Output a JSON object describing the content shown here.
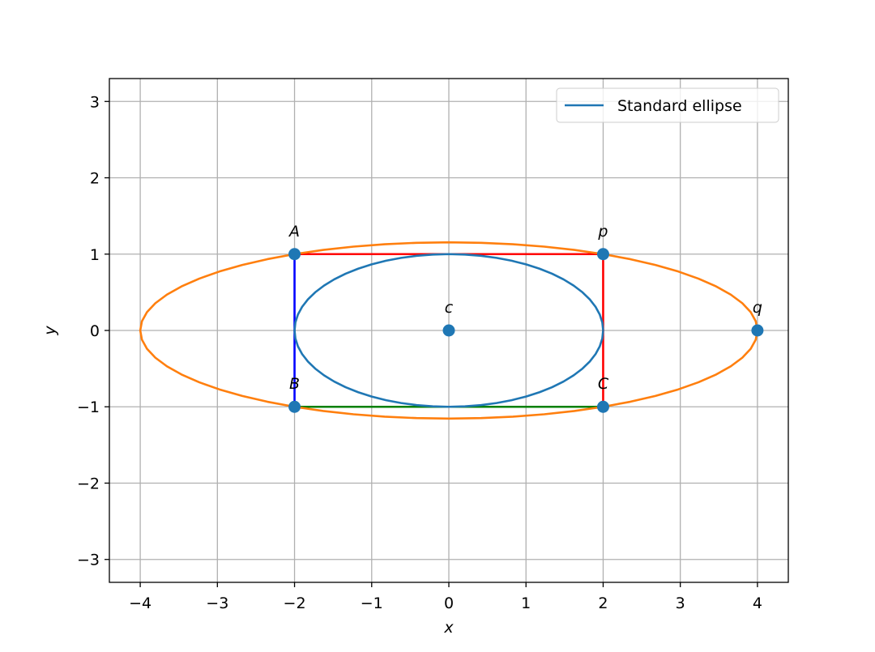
{
  "chart_data": {
    "type": "line",
    "title": "",
    "xlabel": "x",
    "ylabel": "y",
    "xlim": [
      -4.4,
      4.4
    ],
    "ylim": [
      -3.3,
      3.3
    ],
    "xticks": [
      -4,
      -3,
      -2,
      -1,
      0,
      1,
      2,
      3,
      4
    ],
    "yticks": [
      -3,
      -2,
      -1,
      0,
      1,
      2,
      3
    ],
    "xtick_labels": [
      "−4",
      "−3",
      "−2",
      "−1",
      "0",
      "1",
      "2",
      "3",
      "4"
    ],
    "ytick_labels": [
      "−3",
      "−2",
      "−1",
      "0",
      "1",
      "2",
      "3"
    ],
    "grid": true,
    "legend": {
      "position": "top-right",
      "entries": [
        {
          "label": "Standard ellipse",
          "color": "#1f77b4"
        }
      ]
    },
    "ellipses": [
      {
        "name": "standard-ellipse",
        "center": [
          0,
          0
        ],
        "a": 2,
        "b": 1,
        "color": "#1f77b4",
        "legend": "Standard ellipse"
      },
      {
        "name": "outer-ellipse",
        "center": [
          0,
          0
        ],
        "a": 4,
        "b": 1.1547,
        "color": "#ff7f0e"
      }
    ],
    "segments": [
      {
        "name": "segment-A-p",
        "from": [
          -2,
          1
        ],
        "to": [
          2,
          1
        ],
        "color": "#ff0000"
      },
      {
        "name": "segment-p-C",
        "from": [
          2,
          1
        ],
        "to": [
          2,
          -1
        ],
        "color": "#ff0000"
      },
      {
        "name": "segment-B-C",
        "from": [
          -2,
          -1
        ],
        "to": [
          2,
          -1
        ],
        "color": "#008000"
      },
      {
        "name": "segment-A-B",
        "from": [
          -2,
          1
        ],
        "to": [
          -2,
          -1
        ],
        "color": "#0000ff"
      }
    ],
    "points": [
      {
        "label": "A",
        "x": -2,
        "y": 1
      },
      {
        "label": "p",
        "x": 2,
        "y": 1
      },
      {
        "label": "c",
        "x": 0,
        "y": 0
      },
      {
        "label": "q",
        "x": 4,
        "y": 0
      },
      {
        "label": "B",
        "x": -2,
        "y": -1
      },
      {
        "label": "C",
        "x": 2,
        "y": -1
      }
    ],
    "point_color": "#1f77b4"
  }
}
